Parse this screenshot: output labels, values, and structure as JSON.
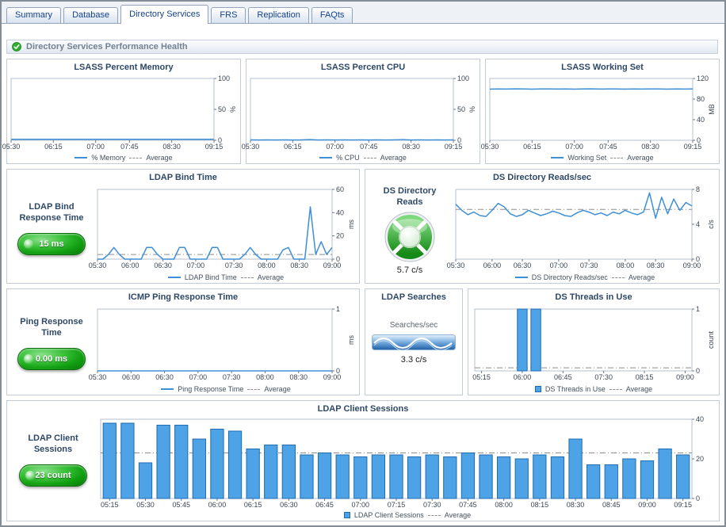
{
  "tabs": {
    "items": [
      {
        "label": "Summary"
      },
      {
        "label": "Database"
      },
      {
        "label": "Directory Services"
      },
      {
        "label": "FRS"
      },
      {
        "label": "Replication"
      },
      {
        "label": "FAQts"
      }
    ],
    "active": "Directory Services"
  },
  "header": {
    "title": "Directory Services Performance Health",
    "status_icon": "green-check"
  },
  "panels": {
    "lsass_memory": {
      "title": "LSASS Percent Memory",
      "legend": "% Memory",
      "avg": "Average"
    },
    "lsass_cpu": {
      "title": "LSASS Percent CPU",
      "legend": "% CPU",
      "avg": "Average"
    },
    "lsass_ws": {
      "title": "LSASS Working Set",
      "legend": "Working Set",
      "avg": "Average"
    },
    "ldap_bind": {
      "title": "LDAP Bind Time",
      "legend": "LDAP Bind Time",
      "avg": "Average",
      "kpi_label": "LDAP Bind Response Time",
      "kpi_value": "15 ms"
    },
    "ds_reads": {
      "title": "DS Directory Reads/sec",
      "legend": "DS Directory Reads/sec",
      "avg": "Average",
      "kpi_label": "DS Directory Reads",
      "kpi_value": "5.7 c/s"
    },
    "icmp_ping": {
      "title": "ICMP Ping Response Time",
      "legend": "Ping Response Time",
      "avg": "Average",
      "kpi_label": "Ping Response Time",
      "kpi_value": "0.00 ms"
    },
    "ldap_searches": {
      "title": "LDAP Searches",
      "unit_label": "Searches/sec",
      "value": "3.3 c/s"
    },
    "ds_threads": {
      "title": "DS Threads in Use",
      "legend": "DS Threads in Use",
      "avg": "Average"
    },
    "ldap_sessions": {
      "title": "LDAP Client Sessions",
      "legend": "LDAP Client Sessions",
      "avg": "Average",
      "kpi_label": "LDAP Client Sessions",
      "kpi_value": "23 count"
    }
  },
  "colors": {
    "series_line": "#3f8fd6",
    "bar_fill": "#4da3e6",
    "bar_border": "#1f6cb0",
    "average_line": "#8f8f8f",
    "kpi_green": "#12a012",
    "title_text": "#2e4866"
  },
  "chart_data": {
    "lsass_percent_memory": {
      "type": "line",
      "x": [
        "05:30",
        "06:15",
        "07:00",
        "07:45",
        "08:30",
        "09:15"
      ],
      "values": [
        1.6,
        1.6,
        1.5,
        1.6,
        1.6,
        1.5,
        1.6,
        1.6,
        1.6,
        1.5,
        1.6,
        1.6,
        1.5,
        1.6,
        1.6,
        1.6,
        1.5,
        1.6,
        1.6,
        1.5,
        1.6,
        1.6,
        1.5,
        1.6,
        1.6
      ],
      "average": 1.6,
      "ylim": [
        0,
        100
      ],
      "yticks": [
        0,
        50,
        100
      ],
      "ylabel": "%"
    },
    "lsass_percent_cpu": {
      "type": "line",
      "x": [
        "05:30",
        "06:15",
        "07:00",
        "07:45",
        "08:30",
        "09:15"
      ],
      "values": [
        0.6,
        0.5,
        0.7,
        0.5,
        0.6,
        0.5,
        0.6,
        1.1,
        0.5,
        0.6,
        0.5,
        0.6,
        0.5,
        0.7,
        0.5,
        0.6,
        0.5,
        0.6,
        1.0,
        0.5,
        0.6,
        0.5,
        0.6,
        0.5,
        0.6
      ],
      "average": 0.6,
      "ylim": [
        0,
        100
      ],
      "yticks": [
        0,
        50,
        100
      ],
      "ylabel": "%"
    },
    "lsass_working_set": {
      "type": "line",
      "x": [
        "05:30",
        "06:15",
        "07:00",
        "07:45",
        "08:30",
        "09:15"
      ],
      "values": [
        99.2,
        99.6,
        99.4,
        99.8,
        99.5,
        99.3,
        99.7,
        99.5,
        99.4,
        99.6,
        99.3,
        99.5,
        99.8,
        99.4,
        99.6,
        99.5,
        99.2,
        99.6,
        99.4,
        99.5,
        99.7,
        99.3,
        99.5,
        99.4,
        99.6
      ],
      "average": 99.5,
      "ylim": [
        0,
        120
      ],
      "yticks": [
        0,
        40,
        80,
        120
      ],
      "ylabel": "MB"
    },
    "ldap_bind_time": {
      "type": "line",
      "x": [
        "05:30",
        "06:00",
        "06:30",
        "07:00",
        "07:30",
        "08:00",
        "08:30",
        "09:00"
      ],
      "values": [
        0,
        0,
        4,
        10,
        4,
        0,
        0,
        0,
        0,
        10,
        10,
        4,
        0,
        0,
        0,
        10,
        10,
        0,
        0,
        0,
        0,
        10,
        10,
        0,
        0,
        0,
        0,
        4,
        10,
        4,
        0,
        0,
        0,
        0,
        8,
        10,
        0,
        0,
        0,
        45,
        4,
        15,
        4,
        10
      ],
      "average": 4,
      "ylim": [
        0,
        60
      ],
      "yticks": [
        0,
        20,
        40,
        60
      ],
      "ylabel": "ms"
    },
    "ds_directory_reads": {
      "type": "line",
      "x": [
        "05:30",
        "06:00",
        "06:30",
        "07:00",
        "07:30",
        "08:00",
        "08:30",
        "09:00"
      ],
      "values": [
        6.3,
        5.6,
        5.1,
        5.4,
        5.0,
        4.9,
        5.6,
        6.4,
        6.0,
        5.2,
        4.9,
        5.1,
        5.6,
        5.3,
        5.0,
        5.2,
        5.5,
        5.3,
        5.0,
        4.9,
        5.3,
        5.6,
        5.4,
        5.1,
        5.3,
        5.0,
        5.4,
        5.2,
        5.6,
        5.3,
        5.1,
        5.4,
        7.6,
        4.7,
        7.1,
        5.2,
        6.9,
        5.6,
        6.5,
        6.1
      ],
      "average": 5.7,
      "ylim": [
        0,
        8
      ],
      "yticks": [
        0,
        4,
        8
      ],
      "ylabel": "c/s"
    },
    "icmp_ping_response": {
      "type": "line",
      "x": [
        "05:30",
        "06:00",
        "06:30",
        "07:00",
        "07:30",
        "08:00",
        "08:30",
        "09:00"
      ],
      "values": [
        0,
        0,
        0,
        0,
        0,
        0,
        0,
        0,
        0,
        0,
        0,
        0,
        0,
        0,
        0
      ],
      "average": 0,
      "ylim": [
        0,
        1
      ],
      "yticks": [
        0,
        1
      ],
      "ylabel": "ms"
    },
    "ldap_searches": {
      "type": "sparkline",
      "unit": "Searches/sec",
      "current_value": 3.3,
      "value_label": "3.3 c/s"
    },
    "ds_threads_in_use": {
      "type": "bar",
      "x": [
        "05:15",
        "06:00",
        "06:45",
        "07:30",
        "08:15",
        "09:00"
      ],
      "values": [
        0,
        0,
        0,
        1,
        1,
        0,
        0,
        0,
        0,
        0,
        0,
        0,
        0,
        0,
        0,
        0
      ],
      "average": 0.05,
      "ylim": [
        0,
        1
      ],
      "yticks": [
        0,
        1
      ],
      "ylabel": "count"
    },
    "ldap_client_sessions": {
      "type": "bar",
      "x": [
        "05:15",
        "05:30",
        "05:45",
        "06:00",
        "06:15",
        "06:30",
        "06:45",
        "07:00",
        "07:15",
        "07:30",
        "07:45",
        "08:00",
        "08:15",
        "08:30",
        "08:45",
        "09:00",
        "09:15"
      ],
      "values": [
        38,
        38,
        18,
        37,
        37,
        30,
        35,
        34,
        25,
        27,
        27,
        22,
        23,
        22,
        21,
        22,
        22,
        21,
        22,
        21,
        23,
        22,
        21,
        20,
        22,
        21,
        30,
        17,
        17,
        20,
        19,
        25,
        22
      ],
      "average": 23,
      "ylim": [
        0,
        40
      ],
      "yticks": [
        0,
        20,
        40
      ],
      "ylabel": ""
    }
  }
}
